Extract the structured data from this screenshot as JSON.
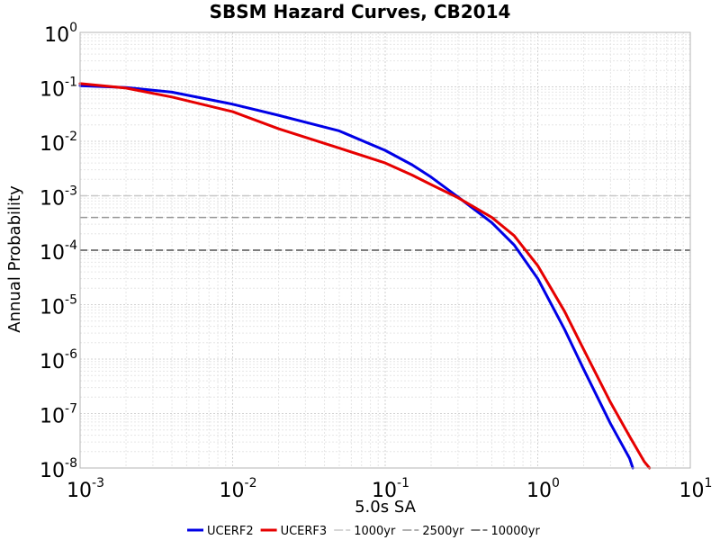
{
  "chart_data": {
    "type": "line",
    "title": "SBSM Hazard Curves, CB2014",
    "xlabel": "5.0s SA",
    "ylabel": "Annual Probability",
    "x_scale": "log",
    "y_scale": "log",
    "xlim": [
      0.001,
      10
    ],
    "ylim": [
      1e-08,
      1
    ],
    "grid": true,
    "legend_placement": "bottom",
    "x_ticks": [
      {
        "base": "10",
        "exp": "-3"
      },
      {
        "base": "10",
        "exp": "-2"
      },
      {
        "base": "10",
        "exp": "-1"
      },
      {
        "base": "10",
        "exp": "0"
      },
      {
        "base": "10",
        "exp": "1"
      }
    ],
    "y_ticks": [
      {
        "base": "10",
        "exp": "0"
      },
      {
        "base": "10",
        "exp": "-1"
      },
      {
        "base": "10",
        "exp": "-2"
      },
      {
        "base": "10",
        "exp": "-3"
      },
      {
        "base": "10",
        "exp": "-4"
      },
      {
        "base": "10",
        "exp": "-5"
      },
      {
        "base": "10",
        "exp": "-6"
      },
      {
        "base": "10",
        "exp": "-7"
      },
      {
        "base": "10",
        "exp": "-8"
      }
    ],
    "series": [
      {
        "name": "UCERF2",
        "color": "#0000e6",
        "x": [
          0.001,
          0.002,
          0.004,
          0.01,
          0.02,
          0.05,
          0.1,
          0.15,
          0.2,
          0.3,
          0.5,
          0.7,
          1.0,
          1.5,
          2.0,
          3.0,
          4.0,
          4.2
        ],
        "y": [
          0.105,
          0.097,
          0.08,
          0.048,
          0.03,
          0.0155,
          0.0068,
          0.0037,
          0.0022,
          0.00095,
          0.00032,
          0.000125,
          3e-05,
          3.5e-06,
          6.5e-07,
          6.5e-08,
          1.5e-08,
          1e-08
        ]
      },
      {
        "name": "UCERF3",
        "color": "#e60000",
        "x": [
          0.001,
          0.002,
          0.004,
          0.01,
          0.02,
          0.05,
          0.1,
          0.15,
          0.2,
          0.3,
          0.5,
          0.7,
          1.0,
          1.5,
          2.0,
          3.0,
          4.0,
          5.0,
          5.4
        ],
        "y": [
          0.115,
          0.095,
          0.065,
          0.035,
          0.017,
          0.0075,
          0.004,
          0.0024,
          0.0016,
          0.00092,
          0.0004,
          0.000185,
          5.2e-05,
          7.5e-06,
          1.5e-06,
          1.6e-07,
          3.8e-08,
          1.3e-08,
          1e-08
        ]
      }
    ],
    "reference_lines": [
      {
        "name": "1000yr",
        "y": 0.001,
        "color": "#c8c8c8"
      },
      {
        "name": "2500yr",
        "y": 0.0004,
        "color": "#969696"
      },
      {
        "name": "10000yr",
        "y": 0.0001,
        "color": "#505050"
      }
    ]
  }
}
